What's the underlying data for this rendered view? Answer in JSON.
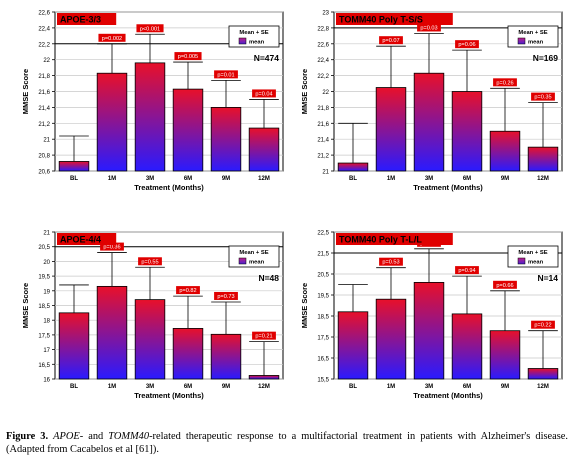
{
  "colors": {
    "label_red": "#e00000",
    "bar_top": "#e8102a",
    "bar_bottom": "#2a1aff",
    "legend_swatch": "#7a2aa8"
  },
  "caption": {
    "label": "Figure 3.",
    "gene1": "APOE",
    "part1": "- and ",
    "gene2": "TOMM40",
    "part2": "-related therapeutic response to a multifactorial treatment in patients with Alzheimer's disease. (Adapted from Cacabelos et al [61])."
  },
  "chart_data": [
    {
      "type": "bar",
      "title": "APOE-3/3",
      "xlabel": "Treatment (Months)",
      "ylabel": "MMSE Score",
      "legend": [
        "Mean + SE",
        "mean"
      ],
      "n_label": "N=474",
      "categories": [
        "BL",
        "1M",
        "3M",
        "6M",
        "9M",
        "12M"
      ],
      "values": [
        20.72,
        21.83,
        21.96,
        21.63,
        21.4,
        21.14
      ],
      "errors": [
        0.32,
        0.37,
        0.36,
        0.34,
        0.34,
        0.36
      ],
      "p_labels": [
        "",
        "p=0.002",
        "p<0.001",
        "p=0.005",
        "p=0.01",
        "p=0.04"
      ],
      "ylim": [
        20.6,
        22.6
      ],
      "yticks": [
        "20,6",
        "20,8",
        "21",
        "21,2",
        "21,4",
        "21,6",
        "21,8",
        "22",
        "22,2",
        "22,4",
        "22,6"
      ],
      "ref_line": 22.2,
      "grid": true
    },
    {
      "type": "bar",
      "title": "TOMM40 Poly T-S/S",
      "xlabel": "Treatment (Months)",
      "ylabel": "MMSE Score",
      "legend": [
        "Mean + SE",
        "mean"
      ],
      "n_label": "N=169",
      "categories": [
        "BL",
        "1M",
        "3M",
        "6M",
        "9M",
        "12M"
      ],
      "values": [
        21.1,
        22.05,
        22.23,
        22.0,
        21.5,
        21.3
      ],
      "errors": [
        0.5,
        0.52,
        0.5,
        0.52,
        0.54,
        0.56
      ],
      "p_labels": [
        "",
        "p=0.07",
        "p=0.03",
        "p=0.06",
        "p=0.26",
        "p=0.35"
      ],
      "ylim": [
        21,
        23
      ],
      "yticks": [
        "21",
        "21,2",
        "21,4",
        "21,6",
        "21,8",
        "22",
        "22,2",
        "22,4",
        "22,6",
        "22,8",
        "23"
      ],
      "ref_line": 22.8,
      "grid": true
    },
    {
      "type": "bar",
      "title": "APOE-4/4",
      "xlabel": "Treatment (Months)",
      "ylabel": "MMSE Score",
      "legend": [
        "Mean + SE",
        "mean"
      ],
      "n_label": "N=48",
      "categories": [
        "BL",
        "1M",
        "3M",
        "6M",
        "9M",
        "12M"
      ],
      "values": [
        18.25,
        19.15,
        18.7,
        17.72,
        17.52,
        16.12
      ],
      "errors": [
        0.95,
        1.15,
        1.1,
        1.1,
        1.1,
        1.15
      ],
      "p_labels": [
        "",
        "p=0.36",
        "p=0.55",
        "p=0.82",
        "p=0.73",
        "p=0.21"
      ],
      "ylim": [
        16,
        21
      ],
      "yticks": [
        "16",
        "16,5",
        "17",
        "17,5",
        "18",
        "18,5",
        "19",
        "19,5",
        "20",
        "20,5",
        "21"
      ],
      "ref_line": 20.5,
      "grid": true
    },
    {
      "type": "bar",
      "title": "TOMM40 Poly T-L/L",
      "xlabel": "Treatment (Months)",
      "ylabel": "MMSE Score",
      "legend": [
        "Mean + SE",
        "mean"
      ],
      "n_label": "N=14",
      "categories": [
        "BL",
        "1M",
        "3M",
        "6M",
        "9M",
        "12M"
      ],
      "values": [
        18.7,
        19.3,
        20.1,
        18.6,
        17.8,
        16.0
      ],
      "errors": [
        1.3,
        1.5,
        1.6,
        1.8,
        1.9,
        1.8
      ],
      "p_labels": [
        "",
        "p=0.53",
        "p=0.52",
        "p=0.94",
        "p=0.66",
        "p=0.22"
      ],
      "ylim": [
        15.5,
        22.5
      ],
      "yticks": [
        "15,5",
        "16,5",
        "17,5",
        "18,5",
        "19,5",
        "20,5",
        "21,5",
        "22,5"
      ],
      "ref_line": 21.5,
      "grid": true
    }
  ]
}
